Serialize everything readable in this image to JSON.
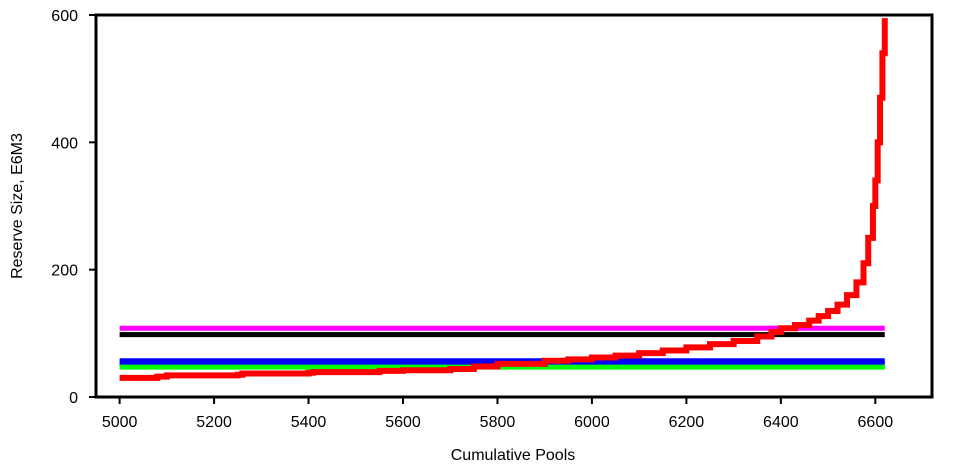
{
  "chart_data": {
    "type": "line",
    "title": "",
    "xlabel": "Cumulative Pools",
    "ylabel": "Reserve Size, E6M3",
    "xlim": [
      4950,
      6720
    ],
    "ylim": [
      0,
      600
    ],
    "xticks": [
      5000,
      5200,
      5400,
      5600,
      5800,
      6000,
      6200,
      6400,
      6600
    ],
    "yticks": [
      0,
      200,
      400,
      600
    ],
    "grid": false,
    "legend": "none",
    "horizontal_lines": [
      {
        "y": 108,
        "x": [
          5000,
          6620
        ],
        "color": "#ff00ff"
      },
      {
        "y": 98,
        "x": [
          5000,
          6620
        ],
        "color": "#000000"
      },
      {
        "y": 57,
        "x": [
          5000,
          6620
        ],
        "color": "#0000ff"
      },
      {
        "y": 52,
        "x": [
          5000,
          6620
        ],
        "color": "#0000ff"
      },
      {
        "y": 47,
        "x": [
          5000,
          6620
        ],
        "color": "#00ff00"
      }
    ],
    "series": [
      {
        "color": "#ff0000",
        "points": [
          [
            5000,
            30
          ],
          [
            5080,
            32
          ],
          [
            5100,
            34
          ],
          [
            5250,
            35
          ],
          [
            5260,
            37
          ],
          [
            5400,
            38
          ],
          [
            5410,
            39
          ],
          [
            5550,
            41
          ],
          [
            5600,
            42
          ],
          [
            5700,
            44
          ],
          [
            5750,
            48
          ],
          [
            5800,
            52
          ],
          [
            5900,
            57
          ],
          [
            5950,
            59
          ],
          [
            6000,
            62
          ],
          [
            6050,
            65
          ],
          [
            6100,
            69
          ],
          [
            6150,
            73
          ],
          [
            6200,
            78
          ],
          [
            6250,
            83
          ],
          [
            6300,
            88
          ],
          [
            6350,
            95
          ],
          [
            6380,
            102
          ],
          [
            6400,
            108
          ],
          [
            6430,
            113
          ],
          [
            6460,
            120
          ],
          [
            6480,
            127
          ],
          [
            6500,
            135
          ],
          [
            6520,
            145
          ],
          [
            6540,
            160
          ],
          [
            6560,
            180
          ],
          [
            6575,
            210
          ],
          [
            6585,
            250
          ],
          [
            6595,
            300
          ],
          [
            6600,
            340
          ],
          [
            6605,
            400
          ],
          [
            6610,
            470
          ],
          [
            6615,
            540
          ],
          [
            6620,
            595
          ]
        ]
      }
    ]
  }
}
